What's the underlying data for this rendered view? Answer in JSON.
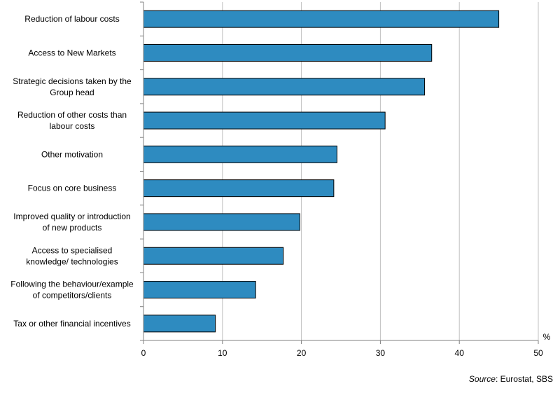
{
  "chart_data": {
    "type": "bar",
    "orientation": "horizontal",
    "categories": [
      [
        "Reduction of labour costs"
      ],
      [
        "Access to New Markets"
      ],
      [
        "Strategic decisions taken by the",
        "Group head"
      ],
      [
        "Reduction of other costs than",
        "labour costs"
      ],
      [
        "Other motivation"
      ],
      [
        "Focus on core business"
      ],
      [
        "Improved quality or introduction",
        "of new products"
      ],
      [
        "Access to specialised",
        "knowledge/ technologies"
      ],
      [
        "Following the behaviour/example",
        "of competitors/clients"
      ],
      [
        "Tax or other financial incentives"
      ]
    ],
    "values": [
      45.0,
      36.5,
      35.6,
      30.6,
      24.5,
      24.1,
      19.8,
      17.7,
      14.2,
      9.1
    ],
    "xlim": [
      0,
      50
    ],
    "xticks": [
      0,
      10,
      20,
      30,
      40,
      50
    ],
    "unit": "%",
    "grid": "vertical",
    "bar_color": "#2e8bc0",
    "bar_stroke": "#000000",
    "grid_color": "#c0c0c0"
  },
  "source": {
    "prefix": "Source",
    "text": ": Eurostat, SBS"
  }
}
